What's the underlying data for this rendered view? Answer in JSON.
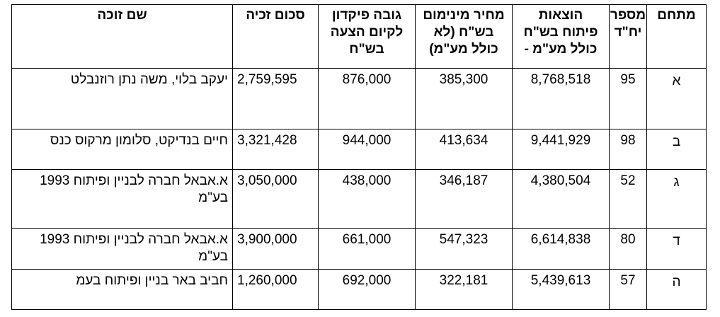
{
  "table": {
    "headers": {
      "area": "מתחם",
      "units": [
        "מספר",
        "יח\"ד"
      ],
      "dev_cost": [
        "הוצאות",
        "פיתוח בש\"ח",
        "כולל מע\"מ -"
      ],
      "min_price": [
        "מחיר מינימום",
        "בש\"ח (לא",
        "כולל מע\"מ)"
      ],
      "deposit": [
        "גובה פיקדון",
        "לקיום הצעה",
        "בש\"ח"
      ],
      "win_amount": "סכום זכיה",
      "winner": "שם זוכה"
    },
    "rows": [
      {
        "area": "א",
        "units": "95",
        "dev_cost": "8,768,518",
        "min_price": "385,300",
        "deposit": "876,000",
        "win_amount": "2,759,595",
        "winner": "יעקב בלוי, משה נתן רוזנבלט"
      },
      {
        "area": "ב",
        "units": "98",
        "dev_cost": "9,441,929",
        "min_price": "413,634",
        "deposit": "944,000",
        "win_amount": "3,321,428",
        "winner": "חיים בנדיקט, סלומון מרקוס כנס"
      },
      {
        "area": "ג",
        "units": "52",
        "dev_cost": "4,380,504",
        "min_price": "346,187",
        "deposit": "438,000",
        "win_amount": "3,050,000",
        "winner": "א.אבאל חברה לבניין ופיתוח 1993 בע\"מ"
      },
      {
        "area": "ד",
        "units": "80",
        "dev_cost": "6,614,838",
        "min_price": "547,323",
        "deposit": "661,000",
        "win_amount": "3,900,000",
        "winner": "א.אבאל חברה לבניין ופיתוח 1993 בע\"מ"
      },
      {
        "area": "ה",
        "units": "57",
        "dev_cost": "5,439,613",
        "min_price": "322,181",
        "deposit": "692,000",
        "win_amount": "1,260,000",
        "winner": "חביב באר בניין ופיתוח בעמ"
      }
    ]
  }
}
